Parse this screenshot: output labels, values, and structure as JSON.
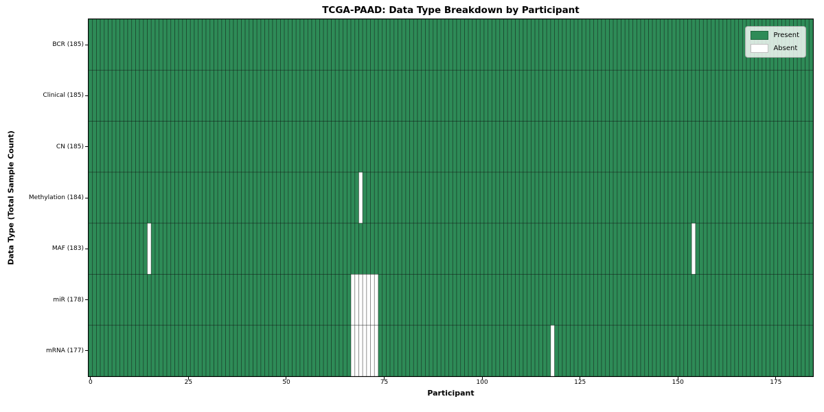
{
  "chart_data": {
    "type": "heatmap",
    "title": "TCGA-PAAD: Data Type Breakdown by Participant",
    "xlabel": "Participant",
    "ylabel": "Data Type (Total Sample Count)",
    "n_participants": 185,
    "x_ticks": [
      0,
      25,
      50,
      75,
      100,
      125,
      150,
      175
    ],
    "rows": [
      {
        "name": "BCR",
        "label": "BCR (185)",
        "total": 185,
        "absent_participants": []
      },
      {
        "name": "Clinical",
        "label": "Clinical (185)",
        "total": 185,
        "absent_participants": []
      },
      {
        "name": "CN",
        "label": "CN (185)",
        "total": 185,
        "absent_participants": []
      },
      {
        "name": "Methylation",
        "label": "Methylation (184)",
        "total": 184,
        "absent_participants": [
          69
        ]
      },
      {
        "name": "MAF",
        "label": "MAF (183)",
        "total": 183,
        "absent_participants": [
          15,
          154
        ]
      },
      {
        "name": "miR",
        "label": "miR (178)",
        "total": 178,
        "absent_participants": [
          67,
          68,
          69,
          70,
          71,
          72,
          73
        ]
      },
      {
        "name": "mRNA",
        "label": "mRNA (177)",
        "total": 177,
        "absent_participants": [
          67,
          68,
          69,
          70,
          71,
          72,
          73,
          118
        ]
      }
    ],
    "legend": {
      "position": "upper right",
      "entries": [
        {
          "label": "Present",
          "color": "#2E8B57"
        },
        {
          "label": "Absent",
          "color": "#FFFFFF"
        }
      ]
    },
    "colors": {
      "present": "#2E8B57",
      "absent": "#FFFFFF",
      "bar_edge": "rgba(0,0,0,0.42)",
      "plot_border": "#000000"
    }
  }
}
